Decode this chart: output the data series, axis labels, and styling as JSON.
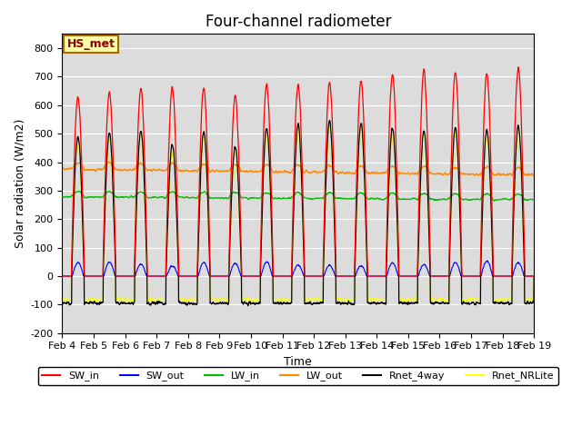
{
  "title": "Four-channel radiometer",
  "xlabel": "Time",
  "ylabel": "Solar radiation (W/m2)",
  "annotation": "HS_met",
  "ylim": [
    -200,
    850
  ],
  "yticks": [
    -200,
    -100,
    0,
    100,
    200,
    300,
    400,
    500,
    600,
    700,
    800
  ],
  "x_tick_labels": [
    "Feb 4",
    "Feb 5",
    "Feb 6",
    "Feb 7",
    "Feb 8",
    "Feb 9",
    "Feb 10",
    "Feb 11",
    "Feb 12",
    "Feb 13",
    "Feb 14",
    "Feb 15",
    "Feb 16",
    "Feb 17",
    "Feb 18",
    "Feb 19"
  ],
  "num_days": 15,
  "pts_per_day": 144,
  "background_color": "#dcdcdc",
  "legend": [
    {
      "label": "SW_in",
      "color": "#ff0000"
    },
    {
      "label": "SW_out",
      "color": "#0000ff"
    },
    {
      "label": "LW_in",
      "color": "#00bb00"
    },
    {
      "label": "LW_out",
      "color": "#ff8800"
    },
    {
      "label": "Rnet_4way",
      "color": "#000000"
    },
    {
      "label": "Rnet_NRLite",
      "color": "#ffff00"
    }
  ],
  "title_fontsize": 12,
  "label_fontsize": 9,
  "tick_fontsize": 8
}
